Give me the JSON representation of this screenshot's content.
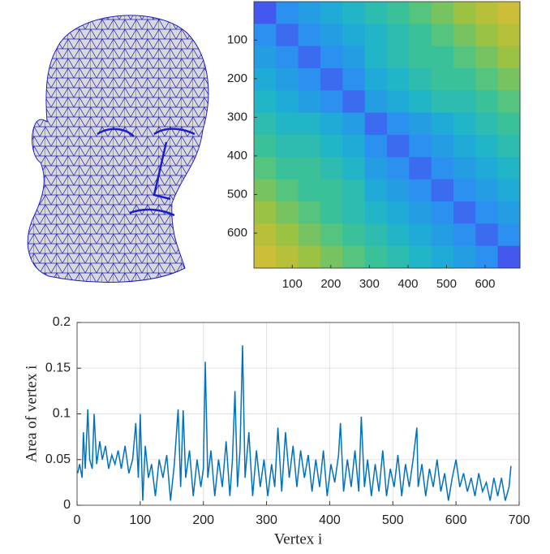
{
  "chart_data": [
    {
      "type": "heatmap",
      "xlim": [
        0.5,
        690.5
      ],
      "ylim": [
        0.5,
        690.5
      ],
      "xticks": [
        100,
        200,
        300,
        400,
        500,
        600
      ],
      "yticks": [
        100,
        200,
        300,
        400,
        500,
        600
      ],
      "clim": [
        0,
        1
      ],
      "colormap": [
        "#3e26a8",
        "#4455ed",
        "#2d8cf2",
        "#1cb2d1",
        "#3fc48f",
        "#a6c23c",
        "#e6bb35",
        "#f9fb15"
      ],
      "matrix": [
        [
          0.15,
          0.3,
          0.35,
          0.4,
          0.45,
          0.5,
          0.55,
          0.6,
          0.65,
          0.7,
          0.75,
          0.8
        ],
        [
          0.3,
          0.2,
          0.3,
          0.35,
          0.4,
          0.45,
          0.5,
          0.55,
          0.6,
          0.65,
          0.7,
          0.75
        ],
        [
          0.35,
          0.3,
          0.2,
          0.3,
          0.35,
          0.45,
          0.5,
          0.55,
          0.55,
          0.6,
          0.65,
          0.7
        ],
        [
          0.4,
          0.35,
          0.3,
          0.2,
          0.3,
          0.4,
          0.45,
          0.5,
          0.55,
          0.55,
          0.6,
          0.65
        ],
        [
          0.45,
          0.4,
          0.35,
          0.3,
          0.2,
          0.35,
          0.4,
          0.45,
          0.5,
          0.5,
          0.55,
          0.6
        ],
        [
          0.5,
          0.45,
          0.45,
          0.4,
          0.35,
          0.2,
          0.3,
          0.35,
          0.4,
          0.45,
          0.5,
          0.55
        ],
        [
          0.55,
          0.5,
          0.5,
          0.45,
          0.4,
          0.3,
          0.2,
          0.3,
          0.35,
          0.4,
          0.45,
          0.5
        ],
        [
          0.6,
          0.55,
          0.55,
          0.5,
          0.45,
          0.35,
          0.3,
          0.2,
          0.3,
          0.35,
          0.4,
          0.45
        ],
        [
          0.65,
          0.6,
          0.55,
          0.55,
          0.5,
          0.4,
          0.35,
          0.3,
          0.2,
          0.3,
          0.35,
          0.4
        ],
        [
          0.7,
          0.65,
          0.6,
          0.55,
          0.5,
          0.45,
          0.4,
          0.35,
          0.3,
          0.2,
          0.3,
          0.35
        ],
        [
          0.75,
          0.7,
          0.65,
          0.6,
          0.55,
          0.5,
          0.45,
          0.4,
          0.35,
          0.3,
          0.2,
          0.3
        ],
        [
          0.8,
          0.75,
          0.7,
          0.65,
          0.6,
          0.55,
          0.5,
          0.45,
          0.4,
          0.35,
          0.3,
          0.15
        ]
      ]
    },
    {
      "type": "line",
      "xlabel": "Vertex i",
      "ylabel": "Area of vertex i",
      "color": "#0072bd",
      "grid": true,
      "xlim": [
        0,
        700
      ],
      "ylim": [
        0,
        0.2
      ],
      "xticks": [
        0,
        100,
        200,
        300,
        400,
        500,
        600,
        700
      ],
      "yticks": [
        0,
        0.05,
        0.1,
        0.15,
        0.2
      ],
      "x": [
        1,
        4,
        8,
        10,
        13,
        17,
        20,
        24,
        27,
        31,
        36,
        40,
        45,
        50,
        55,
        60,
        65,
        70,
        76,
        82,
        88,
        93,
        97,
        100,
        104,
        108,
        113,
        118,
        124,
        130,
        136,
        142,
        148,
        154,
        160,
        164,
        168,
        172,
        178,
        184,
        190,
        196,
        200,
        203,
        207,
        212,
        218,
        224,
        230,
        236,
        242,
        246,
        250,
        254,
        258,
        262,
        266,
        272,
        278,
        284,
        290,
        296,
        302,
        308,
        313,
        318,
        324,
        330,
        336,
        342,
        348,
        354,
        360,
        366,
        372,
        378,
        384,
        390,
        396,
        402,
        408,
        414,
        417,
        422,
        428,
        434,
        440,
        446,
        450,
        455,
        460,
        466,
        472,
        478,
        484,
        490,
        496,
        502,
        508,
        514,
        520,
        526,
        532,
        538,
        540,
        546,
        552,
        558,
        564,
        570,
        576,
        582,
        588,
        594,
        600,
        606,
        612,
        618,
        624,
        630,
        636,
        642,
        648,
        654,
        660,
        666,
        672,
        678,
        684,
        687
      ],
      "values": [
        0.035,
        0.045,
        0.03,
        0.08,
        0.04,
        0.105,
        0.05,
        0.04,
        0.1,
        0.045,
        0.07,
        0.05,
        0.065,
        0.04,
        0.055,
        0.045,
        0.06,
        0.04,
        0.065,
        0.035,
        0.05,
        0.09,
        0.03,
        0.1,
        0.005,
        0.065,
        0.03,
        0.045,
        0.01,
        0.05,
        0.03,
        0.055,
        0.005,
        0.045,
        0.105,
        0.02,
        0.104,
        0.03,
        0.06,
        0.01,
        0.05,
        0.02,
        0.04,
        0.157,
        0.03,
        0.06,
        0.01,
        0.05,
        0.02,
        0.07,
        0.01,
        0.05,
        0.125,
        0.02,
        0.06,
        0.175,
        0.03,
        0.08,
        0.01,
        0.06,
        0.02,
        0.05,
        0.01,
        0.045,
        0.02,
        0.085,
        0.015,
        0.08,
        0.03,
        0.065,
        0.02,
        0.06,
        0.03,
        0.055,
        0.015,
        0.05,
        0.02,
        0.06,
        0.01,
        0.045,
        0.025,
        0.055,
        0.09,
        0.015,
        0.05,
        0.02,
        0.06,
        0.015,
        0.097,
        0.02,
        0.05,
        0.01,
        0.045,
        0.015,
        0.06,
        0.01,
        0.04,
        0.02,
        0.055,
        0.01,
        0.045,
        0.02,
        0.05,
        0.085,
        0.02,
        0.045,
        0.01,
        0.04,
        0.02,
        0.05,
        0.015,
        0.035,
        0.005,
        0.03,
        0.05,
        0.02,
        0.035,
        0.015,
        0.03,
        0.01,
        0.035,
        0.015,
        0.025,
        0.005,
        0.03,
        0.01,
        0.03,
        0.005,
        0.02,
        0.043
      ]
    }
  ]
}
